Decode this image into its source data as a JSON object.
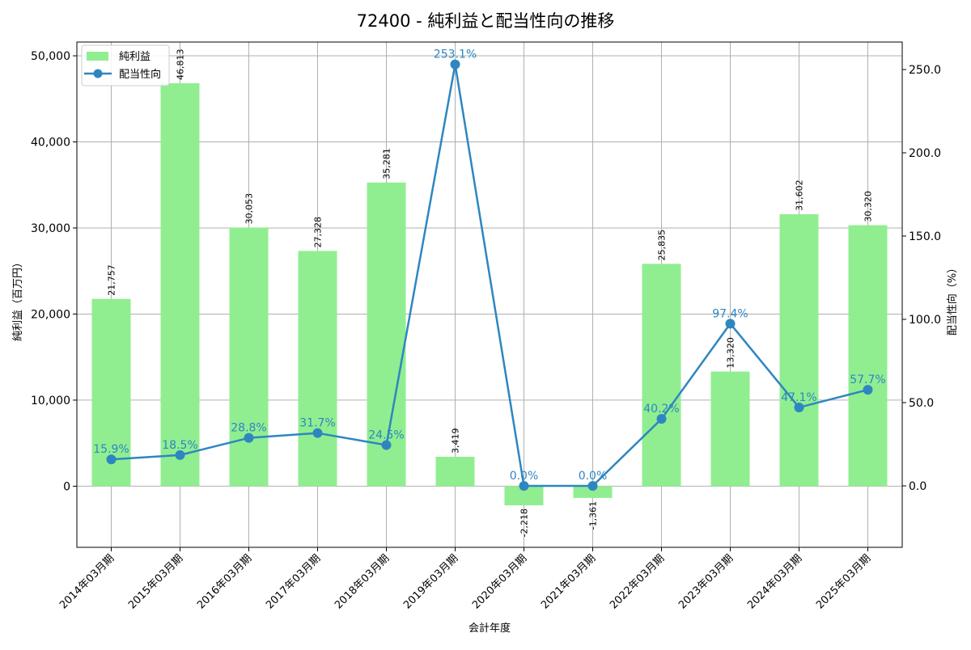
{
  "title": "72400 - 純利益と配当性向の推移",
  "colors": {
    "bar": "#90ee90",
    "line": "#2e86c1",
    "grid": "#b0b0b0",
    "axis": "#000000",
    "text": "#000000"
  },
  "legend": {
    "items": [
      {
        "label": "純利益",
        "type": "bar"
      },
      {
        "label": "配当性向",
        "type": "line"
      }
    ]
  },
  "chart_data": {
    "type": "bar+line",
    "title": "72400 - 純利益と配当性向の推移",
    "xlabel": "会計年度",
    "ylabel": "純利益（百万円）",
    "y2label": "配当性向（%）",
    "categories": [
      "2014年03月期",
      "2015年03月期",
      "2016年03月期",
      "2017年03月期",
      "2018年03月期",
      "2019年03月期",
      "2020年03月期",
      "2021年03月期",
      "2022年03月期",
      "2023年03月期",
      "2024年03月期",
      "2025年03月期"
    ],
    "series": [
      {
        "name": "純利益",
        "type": "bar",
        "axis": "left",
        "values": [
          21757,
          46813,
          30053,
          27328,
          35281,
          3419,
          -2218,
          -1361,
          25835,
          13320,
          31602,
          30320
        ],
        "labels": [
          "21,757",
          "46,813",
          "30,053",
          "27,328",
          "35,281",
          "3,419",
          "-2,218",
          "-1,361",
          "25,835",
          "13,320",
          "31,602",
          "30,320"
        ]
      },
      {
        "name": "配当性向",
        "type": "line",
        "axis": "right",
        "values": [
          15.9,
          18.5,
          28.8,
          31.7,
          24.5,
          253.1,
          0.0,
          0.0,
          40.2,
          97.4,
          47.1,
          57.7
        ],
        "labels": [
          "15.9%",
          "18.5%",
          "28.8%",
          "31.7%",
          "24.5%",
          "253.1%",
          "0.0%",
          "0.0%",
          "40.2%",
          "97.4%",
          "47.1%",
          "57.7%"
        ]
      }
    ],
    "ylim": [
      -7100,
      51600
    ],
    "y2lim": [
      -36.9,
      266.5
    ],
    "yticks": [
      0,
      10000,
      20000,
      30000,
      40000,
      50000
    ],
    "ytick_labels": [
      "0",
      "10,000",
      "20,000",
      "30,000",
      "40,000",
      "50,000"
    ],
    "y2ticks": [
      0,
      50,
      100,
      150,
      200,
      250
    ],
    "y2tick_labels": [
      "0.0",
      "50.0",
      "100.0",
      "150.0",
      "200.0",
      "250.0"
    ],
    "grid": true,
    "legend_position": "upper left"
  }
}
